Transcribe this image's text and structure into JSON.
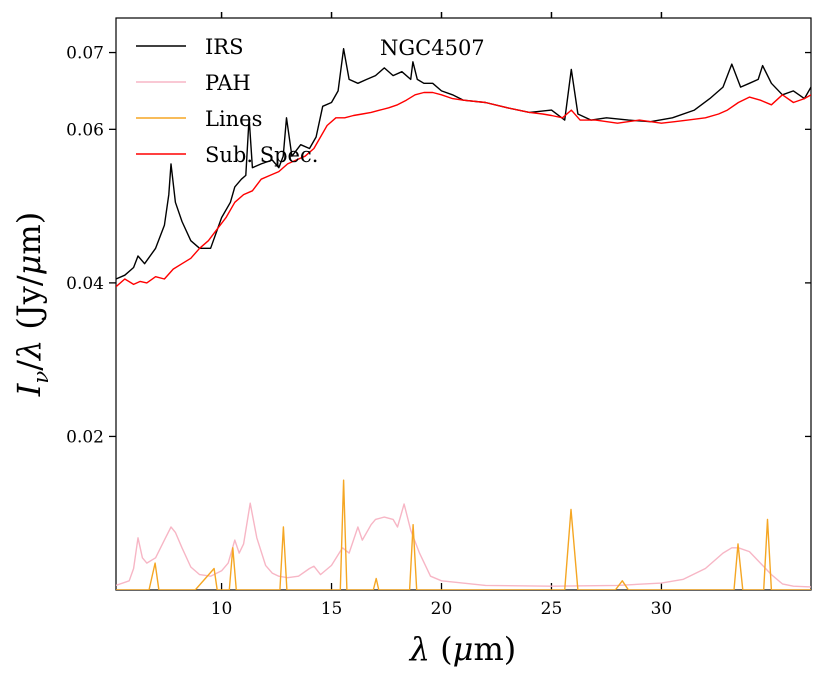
{
  "chart_data": {
    "type": "line",
    "title": "NGC4507",
    "xlabel": "λ (μm)",
    "ylabel": "I_ν/λ (Jy/μm)",
    "xlim": [
      5.2,
      36.8
    ],
    "ylim": [
      0.0,
      0.0745
    ],
    "x_ticks": [
      10,
      15,
      20,
      25,
      30
    ],
    "x_tick_labels": [
      "10",
      "15",
      "20",
      "25",
      "30"
    ],
    "y_ticks": [
      0.02,
      0.04,
      0.06,
      0.07
    ],
    "y_tick_labels": [
      "0.02",
      "0.04",
      "0.06",
      "0.07"
    ],
    "legend": {
      "position": "top-left"
    },
    "series": [
      {
        "name": "IRS",
        "color": "#000000",
        "x": [
          5.2,
          5.6,
          6.0,
          6.2,
          6.5,
          7.0,
          7.4,
          7.6,
          7.7,
          7.9,
          8.2,
          8.6,
          9.0,
          9.5,
          10.0,
          10.4,
          10.6,
          10.9,
          11.1,
          11.25,
          11.4,
          11.8,
          12.3,
          12.6,
          12.8,
          12.95,
          13.2,
          13.6,
          14.0,
          14.3,
          14.6,
          15.0,
          15.3,
          15.55,
          15.8,
          16.2,
          16.6,
          17.0,
          17.4,
          17.8,
          18.2,
          18.6,
          18.7,
          18.9,
          19.2,
          19.6,
          20.0,
          20.5,
          21.0,
          22.0,
          23.0,
          24.0,
          25.0,
          25.6,
          25.9,
          26.2,
          26.8,
          27.5,
          28.5,
          29.5,
          30.5,
          31.5,
          32.2,
          32.8,
          33.2,
          33.6,
          34.0,
          34.4,
          34.6,
          35.0,
          35.5,
          36.0,
          36.5,
          36.8
        ],
        "y": [
          0.0405,
          0.041,
          0.042,
          0.0435,
          0.0425,
          0.0445,
          0.0475,
          0.0515,
          0.0555,
          0.0505,
          0.048,
          0.0455,
          0.0445,
          0.0445,
          0.0485,
          0.0505,
          0.0525,
          0.0535,
          0.054,
          0.0615,
          0.055,
          0.0555,
          0.056,
          0.055,
          0.0565,
          0.0615,
          0.0565,
          0.058,
          0.0575,
          0.059,
          0.063,
          0.0635,
          0.065,
          0.0705,
          0.0665,
          0.066,
          0.0665,
          0.067,
          0.068,
          0.067,
          0.0675,
          0.0665,
          0.0688,
          0.0665,
          0.066,
          0.066,
          0.065,
          0.0645,
          0.0638,
          0.0635,
          0.0628,
          0.0622,
          0.0625,
          0.0612,
          0.0678,
          0.062,
          0.0612,
          0.0615,
          0.0612,
          0.061,
          0.0615,
          0.0625,
          0.064,
          0.0655,
          0.0685,
          0.0655,
          0.066,
          0.0665,
          0.0683,
          0.066,
          0.0645,
          0.065,
          0.064,
          0.0655
        ]
      },
      {
        "name": "PAH",
        "color": "#f7b6c5",
        "x": [
          5.2,
          5.8,
          6.0,
          6.2,
          6.4,
          6.6,
          7.0,
          7.4,
          7.7,
          7.9,
          8.2,
          8.6,
          9.0,
          9.5,
          10.0,
          10.3,
          10.6,
          10.8,
          11.0,
          11.3,
          11.6,
          12.0,
          12.3,
          12.6,
          13.0,
          13.5,
          14.0,
          14.2,
          14.5,
          15.0,
          15.5,
          15.8,
          16.2,
          16.4,
          16.8,
          17.0,
          17.4,
          17.8,
          18.0,
          18.3,
          18.6,
          19.0,
          19.5,
          20.0,
          22.0,
          25.0,
          28.0,
          30.0,
          31.0,
          32.0,
          32.8,
          33.2,
          33.5,
          34.0,
          34.5,
          35.0,
          35.5,
          36.0,
          36.8
        ],
        "y": [
          0.0006,
          0.0012,
          0.0028,
          0.0068,
          0.0042,
          0.0035,
          0.0042,
          0.0065,
          0.0082,
          0.0075,
          0.0055,
          0.003,
          0.002,
          0.0018,
          0.0025,
          0.0035,
          0.0065,
          0.0048,
          0.006,
          0.0113,
          0.0068,
          0.0032,
          0.0022,
          0.0018,
          0.0016,
          0.0018,
          0.0028,
          0.0031,
          0.002,
          0.0032,
          0.0055,
          0.0048,
          0.0082,
          0.0065,
          0.0085,
          0.0092,
          0.0095,
          0.0092,
          0.0082,
          0.0112,
          0.0078,
          0.0048,
          0.0018,
          0.0012,
          0.0006,
          0.0005,
          0.0006,
          0.0009,
          0.0014,
          0.0028,
          0.0048,
          0.0055,
          0.0055,
          0.005,
          0.0035,
          0.002,
          0.0008,
          0.0005,
          0.0004
        ]
      },
      {
        "name": "Lines",
        "color": "#f5a623",
        "x": [
          5.2,
          6.7,
          6.98,
          7.15,
          7.3,
          8.8,
          9.66,
          9.8,
          10.35,
          10.51,
          10.67,
          12.65,
          12.81,
          12.97,
          15.4,
          15.55,
          15.7,
          16.9,
          17.03,
          17.15,
          18.55,
          18.71,
          18.87,
          25.6,
          25.89,
          26.2,
          27.9,
          28.22,
          28.5,
          33.3,
          33.48,
          33.7,
          34.65,
          34.82,
          35.0,
          36.8
        ],
        "y": [
          0.0,
          0.0,
          0.0035,
          0.0,
          0.0,
          0.0,
          0.0028,
          0.0,
          0.0,
          0.0055,
          0.0,
          0.0,
          0.0082,
          0.0,
          0.0,
          0.0143,
          0.0,
          0.0,
          0.0015,
          0.0,
          0.0,
          0.0085,
          0.0,
          0.0,
          0.0105,
          0.0,
          0.0,
          0.0012,
          0.0,
          0.0,
          0.006,
          0.0,
          0.0,
          0.0092,
          0.0,
          0.0
        ]
      },
      {
        "name": "Sub. Spec.",
        "color": "#ff0000",
        "x": [
          5.2,
          5.6,
          6.0,
          6.3,
          6.6,
          7.0,
          7.4,
          7.8,
          8.2,
          8.6,
          9.0,
          9.4,
          9.8,
          10.2,
          10.6,
          11.0,
          11.4,
          11.8,
          12.2,
          12.6,
          13.0,
          13.4,
          13.8,
          14.2,
          14.5,
          14.8,
          15.2,
          15.6,
          16.0,
          16.4,
          16.8,
          17.2,
          17.6,
          18.0,
          18.4,
          18.8,
          19.2,
          19.6,
          20.0,
          20.5,
          21.0,
          22.0,
          23.0,
          24.0,
          24.6,
          25.0,
          25.5,
          25.9,
          26.3,
          27.0,
          28.0,
          29.0,
          30.0,
          30.6,
          31.2,
          32.0,
          32.6,
          33.0,
          33.5,
          34.0,
          34.5,
          35.0,
          35.5,
          36.0,
          36.5,
          36.8
        ],
        "y": [
          0.0395,
          0.0405,
          0.0398,
          0.0402,
          0.04,
          0.0408,
          0.0405,
          0.0418,
          0.0425,
          0.0432,
          0.0445,
          0.0455,
          0.047,
          0.0485,
          0.0505,
          0.0515,
          0.052,
          0.0535,
          0.054,
          0.0545,
          0.0555,
          0.056,
          0.0565,
          0.0575,
          0.059,
          0.0605,
          0.0615,
          0.0615,
          0.0618,
          0.062,
          0.0622,
          0.0625,
          0.0628,
          0.0632,
          0.0638,
          0.0645,
          0.0648,
          0.0648,
          0.0645,
          0.064,
          0.0638,
          0.0635,
          0.0628,
          0.0622,
          0.062,
          0.0618,
          0.0615,
          0.0625,
          0.0612,
          0.0612,
          0.0608,
          0.0612,
          0.0608,
          0.061,
          0.0612,
          0.0615,
          0.062,
          0.0625,
          0.0635,
          0.0642,
          0.0638,
          0.0632,
          0.0645,
          0.0635,
          0.064,
          0.0645
        ]
      }
    ]
  }
}
